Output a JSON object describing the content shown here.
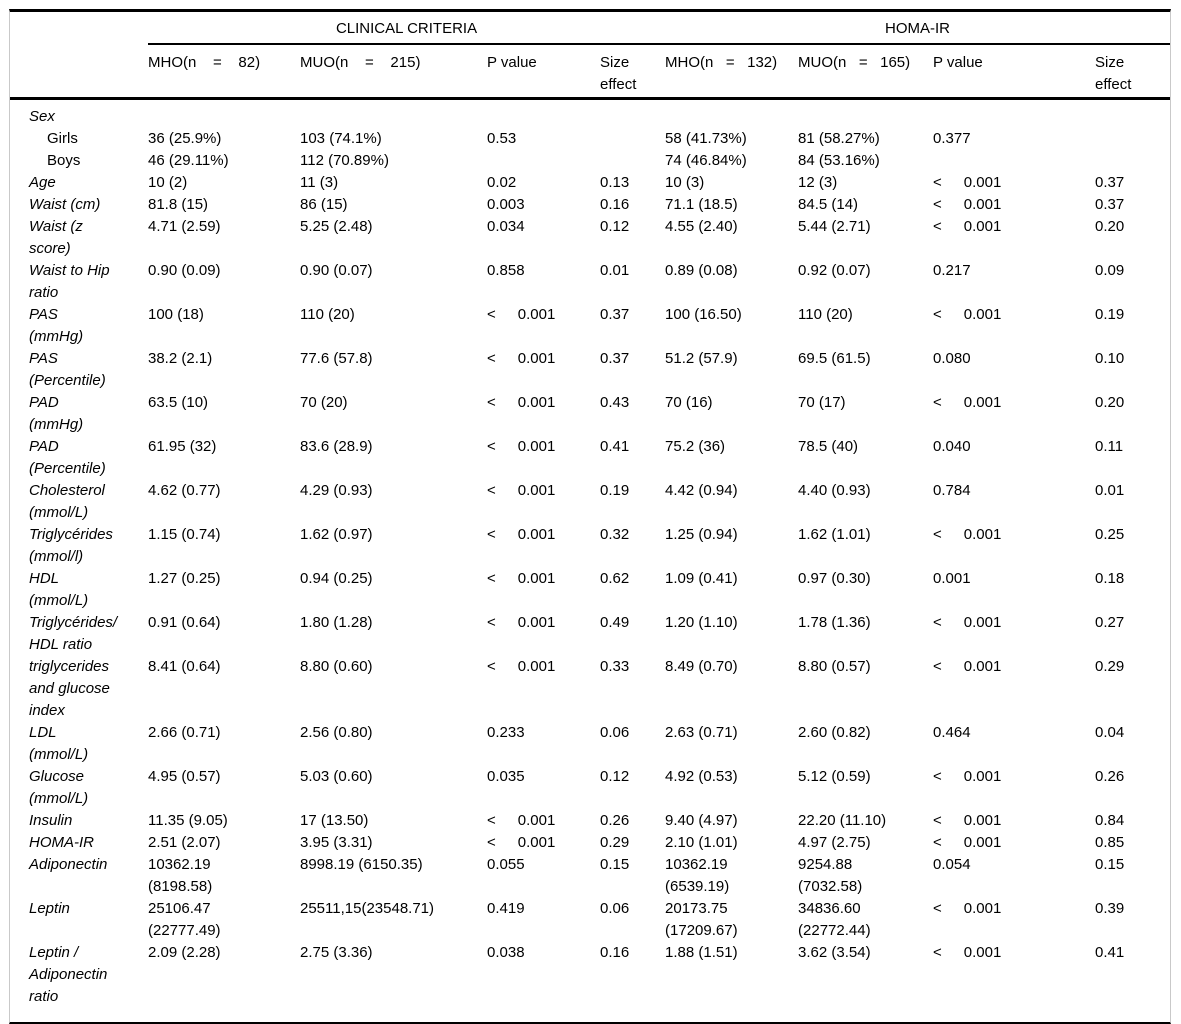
{
  "table": {
    "groups": [
      "CLINICAL CRITERIA",
      "HOMA-IR"
    ],
    "columns": [
      "",
      "MHO(n    =    82)",
      "MUO(n    =    215)",
      "P value",
      "Size\neffect",
      "MHO(n   =   132)",
      "MUO(n   =   165)",
      "P value",
      "Size\neffect"
    ],
    "rows": [
      {
        "label": "Sex",
        "cells": [
          "",
          "",
          "",
          "",
          "",
          "",
          "",
          ""
        ]
      },
      {
        "label": "Girls",
        "indent": true,
        "cells": [
          "36 (25.9%)",
          "103 (74.1%)",
          "0.53",
          "",
          "58 (41.73%)",
          "81 (58.27%)",
          "0.377",
          ""
        ]
      },
      {
        "label": "Boys",
        "indent": true,
        "cells": [
          "46 (29.11%)",
          "112 (70.89%)",
          "",
          "",
          "74 (46.84%)",
          "84 (53.16%)",
          "",
          ""
        ]
      },
      {
        "label": "Age",
        "cells": [
          "10 (2)",
          "11 (3)",
          "0.02",
          "0.13",
          "10 (3)",
          "12 (3)",
          "< 0.001",
          "0.37"
        ]
      },
      {
        "label": "Waist (cm)",
        "cells": [
          "81.8 (15)",
          "86 (15)",
          "0.003",
          "0.16",
          "71.1 (18.5)",
          "84.5 (14)",
          "< 0.001",
          "0.37"
        ]
      },
      {
        "label": "Waist (z\nscore)",
        "cells": [
          "4.71 (2.59)",
          "5.25 (2.48)",
          "0.034",
          "0.12",
          "4.55 (2.40)",
          "5.44 (2.71)",
          "< 0.001",
          "0.20"
        ]
      },
      {
        "label": "Waist to Hip\nratio",
        "cells": [
          "0.90 (0.09)",
          "0.90 (0.07)",
          "0.858",
          "0.01",
          "0.89 (0.08)",
          "0.92 (0.07)",
          "0.217",
          "0.09"
        ]
      },
      {
        "label": "PAS\n(mmHg)",
        "cells": [
          "100 (18)",
          "110 (20)",
          "< 0.001",
          "0.37",
          "100 (16.50)",
          "110 (20)",
          "< 0.001",
          "0.19"
        ]
      },
      {
        "label": "PAS\n(Percentile)",
        "cells": [
          "38.2 (2.1)",
          "77.6 (57.8)",
          "< 0.001",
          "0.37",
          "51.2 (57.9)",
          "69.5 (61.5)",
          "0.080",
          "0.10"
        ]
      },
      {
        "label": "PAD\n(mmHg)",
        "cells": [
          "63.5 (10)",
          "70 (20)",
          "< 0.001",
          "0.43",
          "70 (16)",
          "70 (17)",
          "< 0.001",
          "0.20"
        ]
      },
      {
        "label": "PAD\n(Percentile)",
        "cells": [
          "61.95 (32)",
          "83.6 (28.9)",
          "< 0.001",
          "0.41",
          "75.2 (36)",
          "78.5 (40)",
          "0.040",
          "0.11"
        ]
      },
      {
        "label": "Cholesterol\n(mmol/L)",
        "cells": [
          "4.62 (0.77)",
          "4.29 (0.93)",
          "< 0.001",
          "0.19",
          "4.42 (0.94)",
          "4.40 (0.93)",
          "0.784",
          "0.01"
        ]
      },
      {
        "label": "Triglycérides\n(mmol/l)",
        "cells": [
          "1.15 (0.74)",
          "1.62 (0.97)",
          "< 0.001",
          "0.32",
          "1.25 (0.94)",
          "1.62 (1.01)",
          "< 0.001",
          "0.25"
        ]
      },
      {
        "label": "HDL\n(mmol/L)",
        "cells": [
          "1.27 (0.25)",
          "0.94 (0.25)",
          "< 0.001",
          "0.62",
          "1.09 (0.41)",
          "0.97 (0.30)",
          "0.001",
          "0.18"
        ]
      },
      {
        "label": "Triglycérides/\nHDL ratio",
        "cells": [
          "0.91 (0.64)",
          "1.80 (1.28)",
          "< 0.001",
          "0.49",
          "1.20 (1.10)",
          "1.78 (1.36)",
          "< 0.001",
          "0.27"
        ]
      },
      {
        "label": "triglycerides\nand glucose\nindex",
        "cells": [
          "8.41 (0.64)",
          "8.80 (0.60)",
          "< 0.001",
          "0.33",
          "8.49 (0.70)",
          "8.80 (0.57)",
          "< 0.001",
          "0.29"
        ]
      },
      {
        "label": "LDL\n(mmol/L)",
        "cells": [
          "2.66 (0.71)",
          "2.56 (0.80)",
          "0.233",
          "0.06",
          "2.63 (0.71)",
          "2.60 (0.82)",
          "0.464",
          "0.04"
        ]
      },
      {
        "label": "Glucose\n(mmol/L)",
        "cells": [
          "4.95 (0.57)",
          "5.03 (0.60)",
          "0.035",
          "0.12",
          "4.92 (0.53)",
          "5.12 (0.59)",
          "< 0.001",
          "0.26"
        ]
      },
      {
        "label": "Insulin",
        "cells": [
          "11.35 (9.05)",
          "17 (13.50)",
          "< 0.001",
          "0.26",
          "9.40 (4.97)",
          "22.20 (11.10)",
          "< 0.001",
          "0.84"
        ]
      },
      {
        "label": "HOMA-IR",
        "cells": [
          "2.51 (2.07)",
          "3.95 (3.31)",
          "< 0.001",
          "0.29",
          "2.10 (1.01)",
          "4.97 (2.75)",
          "< 0.001",
          "0.85"
        ]
      },
      {
        "label": "Adiponectin",
        "cells": [
          "10362.19\n(8198.58)",
          "8998.19 (6150.35)",
          "0.055",
          "0.15",
          "10362.19\n(6539.19)",
          "9254.88\n(7032.58)",
          "0.054",
          "0.15"
        ]
      },
      {
        "label": "Leptin",
        "cells": [
          "25106.47\n(22777.49)",
          "25511,15(23548.71)",
          "0.419",
          "0.06",
          "20173.75\n(17209.67)",
          "34836.60\n(22772.44)",
          "< 0.001",
          "0.39"
        ]
      },
      {
        "label": "Leptin /\nAdiponectin\nratio",
        "cells": [
          "2.09 (2.28)",
          "2.75 (3.36)",
          "0.038",
          "0.16",
          "1.88 (1.51)",
          "3.62 (3.54)",
          "< 0.001",
          "0.41"
        ]
      }
    ]
  },
  "colors": {
    "rule": "#000000",
    "side_border": "#c9c9c9",
    "background": "#ffffff",
    "text": "#000000"
  }
}
